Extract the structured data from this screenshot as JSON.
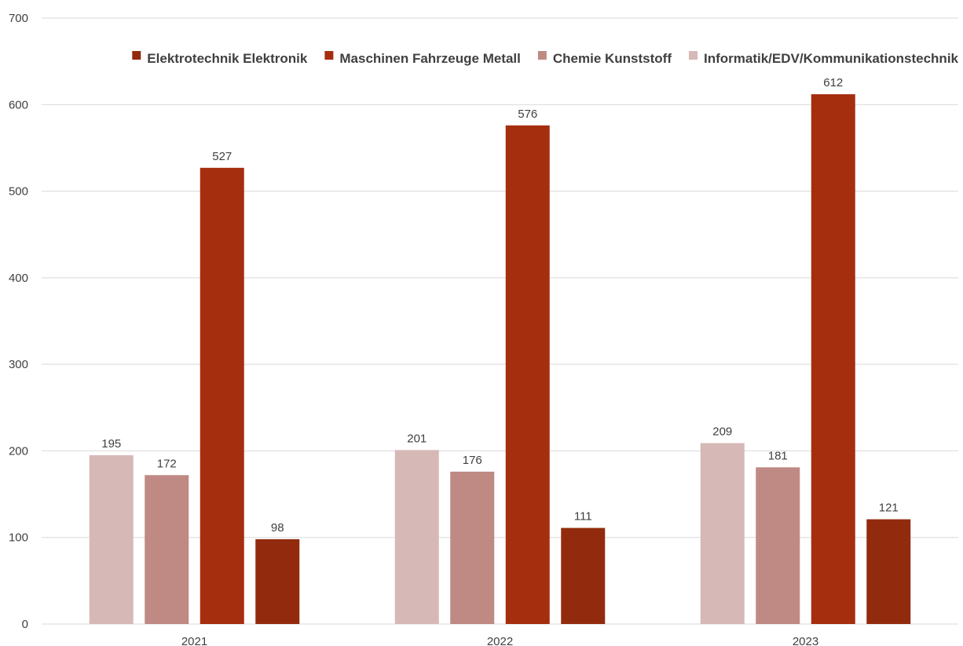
{
  "chart_data": {
    "type": "bar",
    "title": "",
    "xlabel": "",
    "ylabel": "",
    "categories": [
      "2021",
      "2022",
      "2023"
    ],
    "ylim": [
      0,
      700
    ],
    "yticks": [
      0,
      100,
      200,
      300,
      400,
      500,
      600,
      700
    ],
    "grid": true,
    "legend_position": "top",
    "legend": [
      {
        "name": "Elektrotechnik Elektronik",
        "color": "#922b0e"
      },
      {
        "name": "Maschinen Fahrzeuge Metall",
        "color": "#a52e0e"
      },
      {
        "name": "Chemie Kunststoff",
        "color": "#bf8984"
      },
      {
        "name": "Informatik/EDV/Kommunikationstechnik",
        "color": "#d6b8b6"
      }
    ],
    "series": [
      {
        "name": "Informatik/EDV/Kommunikationstechnik",
        "color": "#d6b8b6",
        "values": [
          195,
          201,
          209
        ]
      },
      {
        "name": "Chemie Kunststoff",
        "color": "#bf8984",
        "values": [
          172,
          176,
          181
        ]
      },
      {
        "name": "Maschinen Fahrzeuge Metall",
        "color": "#a52e0e",
        "values": [
          527,
          576,
          612
        ]
      },
      {
        "name": "Elektrotechnik Elektronik",
        "color": "#922b0e",
        "values": [
          98,
          111,
          121
        ]
      }
    ]
  }
}
